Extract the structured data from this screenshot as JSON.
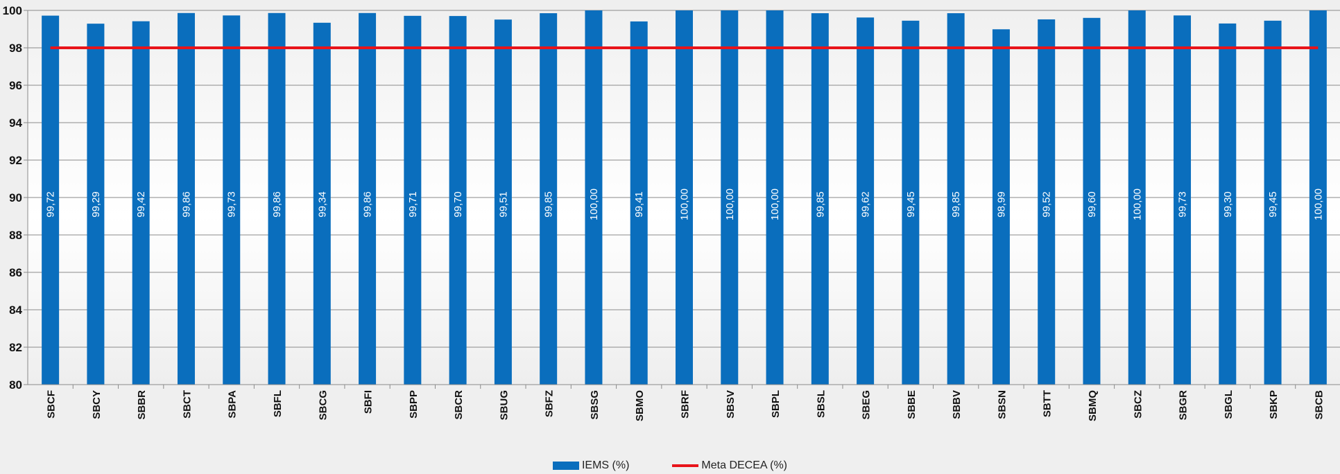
{
  "chart_data": {
    "type": "bar",
    "categories": [
      "SBCF",
      "SBCY",
      "SBBR",
      "SBCT",
      "SBPA",
      "SBFL",
      "SBCG",
      "SBFI",
      "SBPP",
      "SBCR",
      "SBUG",
      "SBFZ",
      "SBSG",
      "SBMO",
      "SBRF",
      "SBSV",
      "SBPL",
      "SBSL",
      "SBEG",
      "SBBE",
      "SBBV",
      "SBSN",
      "SBTT",
      "SBMQ",
      "SBCZ",
      "SBGR",
      "SBGL",
      "SBKP",
      "SBCB"
    ],
    "series": [
      {
        "name": "IEMS (%)",
        "type": "bar",
        "color": "#0a6ebd",
        "values": [
          99.72,
          99.29,
          99.42,
          99.86,
          99.73,
          99.86,
          99.34,
          99.86,
          99.71,
          99.7,
          99.51,
          99.85,
          100.0,
          99.41,
          100.0,
          100.0,
          100.0,
          99.85,
          99.62,
          99.45,
          99.85,
          98.99,
          99.52,
          99.6,
          100.0,
          99.73,
          99.3,
          99.45,
          100.0
        ],
        "data_labels": [
          "99,72",
          "99,29",
          "99,42",
          "99,86",
          "99,73",
          "99,86",
          "99,34",
          "99,86",
          "99,71",
          "99,70",
          "99,51",
          "99,85",
          "100,00",
          "99,41",
          "100,00",
          "100,00",
          "100,00",
          "99,85",
          "99,62",
          "99,45",
          "99,85",
          "98,99",
          "99,52",
          "99,60",
          "100,00",
          "99,73",
          "99,30",
          "99,45",
          "100,00"
        ]
      },
      {
        "name": "Meta DECEA (%)",
        "type": "line",
        "color": "#e8141a",
        "value": 98
      }
    ],
    "ylim": [
      80,
      100
    ],
    "yticks": [
      "80",
      "82",
      "84",
      "86",
      "88",
      "90",
      "92",
      "94",
      "96",
      "98",
      "100"
    ],
    "grid": true,
    "legend_position": "bottom"
  }
}
